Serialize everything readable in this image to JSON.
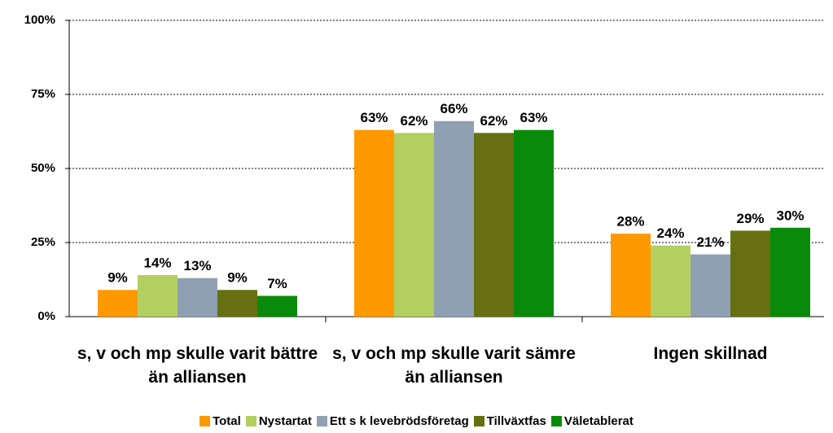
{
  "chart_data": {
    "type": "bar",
    "categories": [
      "s, v och mp skulle varit bättre än alliansen",
      "s, v och mp skulle varit sämre än alliansen",
      "Ingen skillnad"
    ],
    "series": [
      {
        "name": "Total",
        "color": "#ff9900",
        "values": [
          9,
          63,
          28
        ],
        "value_labels": [
          "9%",
          "63%",
          "28%"
        ]
      },
      {
        "name": "Nystartat",
        "color": "#b3cf5f",
        "values": [
          14,
          62,
          24
        ],
        "value_labels": [
          "14%",
          "62%",
          "24%"
        ]
      },
      {
        "name": "Ett s k levebrödsföretag",
        "color": "#8fa0b2",
        "values": [
          13,
          66,
          21
        ],
        "value_labels": [
          "13%",
          "66%",
          "21%"
        ]
      },
      {
        "name": "Tillväxtfas",
        "color": "#667010",
        "values": [
          9,
          62,
          29
        ],
        "value_labels": [
          "9%",
          "62%",
          "29%"
        ]
      },
      {
        "name": "Väletablerat",
        "color": "#0a8a0a",
        "values": [
          7,
          63,
          30
        ],
        "value_labels": [
          "7%",
          "63%",
          "30%"
        ]
      }
    ],
    "ylim": [
      0,
      100
    ],
    "yticks": [
      {
        "value": 0,
        "label": "0%"
      },
      {
        "value": 25,
        "label": "25%"
      },
      {
        "value": 50,
        "label": "50%"
      },
      {
        "value": 75,
        "label": "75%"
      },
      {
        "value": 100,
        "label": "100%"
      }
    ],
    "grid": true,
    "legend": "bottom"
  }
}
